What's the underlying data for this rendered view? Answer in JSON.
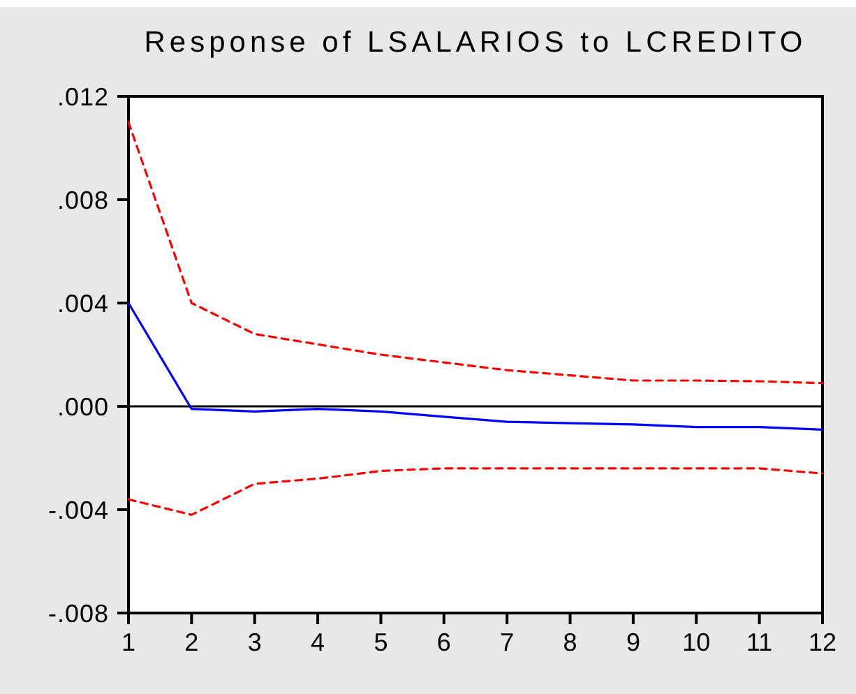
{
  "chart_data": {
    "type": "line",
    "title": "Response of LSALARIOS to LCREDITO",
    "x": [
      1,
      2,
      3,
      4,
      5,
      6,
      7,
      8,
      9,
      10,
      11,
      12
    ],
    "series": [
      {
        "color": "#0000ff",
        "line_style": "solid",
        "values": [
          0.004,
          -0.0001,
          -0.0002,
          -0.0001,
          -0.0002,
          -0.0004,
          -0.0006,
          -0.00065,
          -0.0007,
          -0.0008,
          -0.0008,
          -0.0009
        ]
      },
      {
        "color": "#ff0000",
        "line_style": "dashed",
        "values": [
          0.011,
          0.004,
          0.0028,
          0.0024,
          0.002,
          0.0017,
          0.0014,
          0.0012,
          0.001,
          0.001,
          0.00097,
          0.0009
        ]
      },
      {
        "color": "#ff0000",
        "line_style": "dashed",
        "values": [
          -0.0036,
          -0.0042,
          -0.003,
          -0.0028,
          -0.0025,
          -0.0024,
          -0.0024,
          -0.0024,
          -0.0024,
          -0.0024,
          -0.0024,
          -0.0026
        ]
      }
    ],
    "xlim": [
      1,
      12
    ],
    "xticks": [
      1,
      2,
      3,
      4,
      5,
      6,
      7,
      8,
      9,
      10,
      11,
      12
    ],
    "ylim": [
      -0.008,
      0.012
    ],
    "yticks": [
      {
        "value": -0.008,
        "label": "-.008"
      },
      {
        "value": -0.004,
        "label": "-.004"
      },
      {
        "value": 0,
        "label": ".000"
      },
      {
        "value": 0.004,
        "label": ".004"
      },
      {
        "value": 0.008,
        "label": ".008"
      },
      {
        "value": 0.012,
        "label": ".012"
      }
    ],
    "ref_lines": [
      {
        "axis": "y",
        "value": 0,
        "color": "#000000"
      }
    ]
  }
}
